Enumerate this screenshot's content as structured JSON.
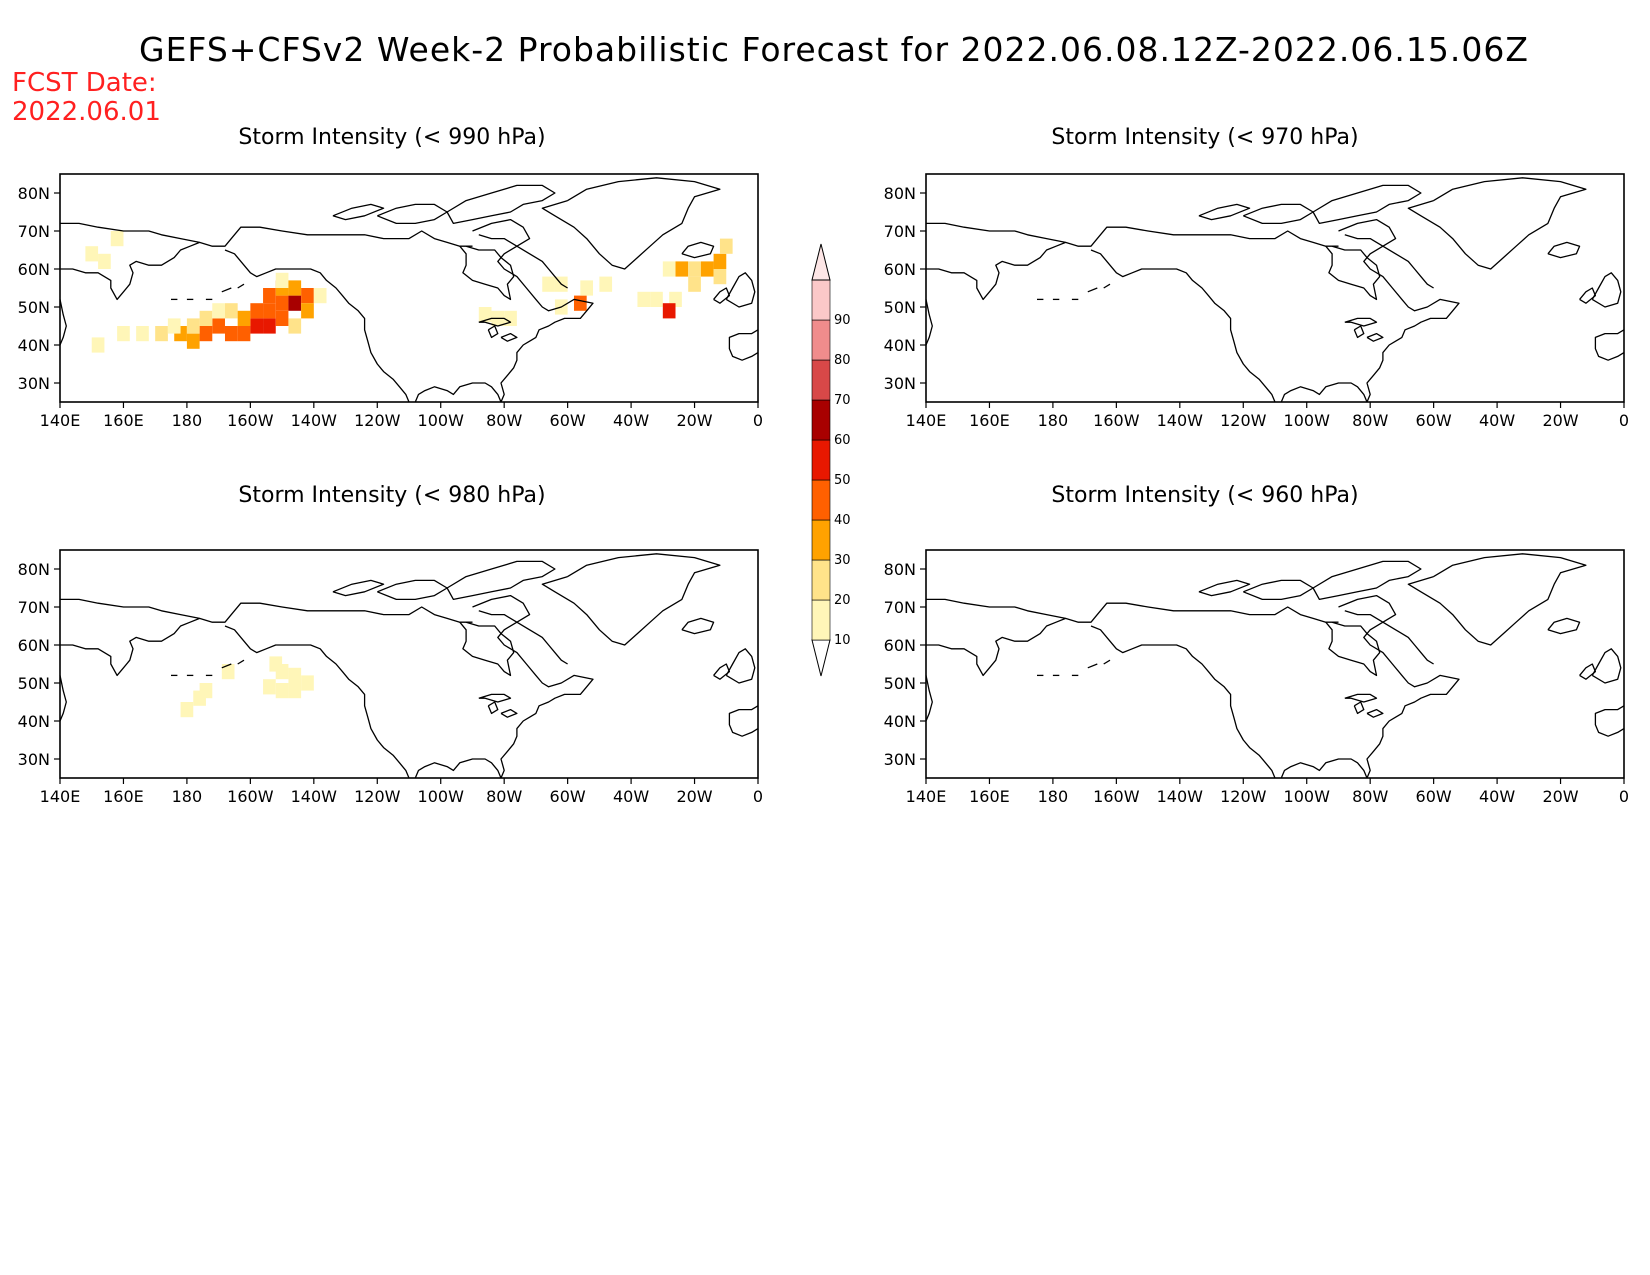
{
  "title": "GEFS+CFSv2 Week-2 Probabilistic Forecast for 2022.06.08.12Z-2022.06.15.06Z",
  "fcst_date_label": "FCST Date:",
  "fcst_date_value": "2022.06.01",
  "axes": {
    "x_ticks": [
      "140E",
      "160E",
      "180",
      "160W",
      "140W",
      "120W",
      "100W",
      "80W",
      "60W",
      "40W",
      "20W",
      "0"
    ],
    "y_ticks": [
      "80N",
      "70N",
      "60N",
      "50N",
      "40N",
      "30N"
    ],
    "lon_range": [
      140,
      360
    ],
    "lat_range": [
      25,
      85
    ]
  },
  "colorbar": {
    "levels": [
      "10",
      "20",
      "30",
      "40",
      "50",
      "60",
      "70",
      "80",
      "90"
    ],
    "colors": [
      "#fff6b8",
      "#ffe38a",
      "#ffa200",
      "#ff6000",
      "#e81800",
      "#a80000",
      "#d84848",
      "#f08c8c",
      "#fbc8c8",
      "#fde6e6"
    ]
  },
  "panels": [
    {
      "title": "Storm Intensity (< 990 hPa)",
      "cells": [
        {
          "lon": 150,
          "lat": 64,
          "p": 15
        },
        {
          "lon": 154,
          "lat": 62,
          "p": 15
        },
        {
          "lon": 158,
          "lat": 68,
          "p": 12
        },
        {
          "lon": 152,
          "lat": 40,
          "p": 12
        },
        {
          "lon": 160,
          "lat": 43,
          "p": 15
        },
        {
          "lon": 166,
          "lat": 43,
          "p": 15
        },
        {
          "lon": 172,
          "lat": 43,
          "p": 25
        },
        {
          "lon": 178,
          "lat": 43,
          "p": 35
        },
        {
          "lon": 182,
          "lat": 41,
          "p": 35
        },
        {
          "lon": 186,
          "lat": 43,
          "p": 45
        },
        {
          "lon": 190,
          "lat": 45,
          "p": 40
        },
        {
          "lon": 194,
          "lat": 43,
          "p": 45
        },
        {
          "lon": 198,
          "lat": 43,
          "p": 45
        },
        {
          "lon": 202,
          "lat": 45,
          "p": 55
        },
        {
          "lon": 206,
          "lat": 45,
          "p": 55
        },
        {
          "lon": 186,
          "lat": 47,
          "p": 25
        },
        {
          "lon": 194,
          "lat": 49,
          "p": 25
        },
        {
          "lon": 198,
          "lat": 47,
          "p": 30
        },
        {
          "lon": 202,
          "lat": 49,
          "p": 45
        },
        {
          "lon": 206,
          "lat": 49,
          "p": 45
        },
        {
          "lon": 206,
          "lat": 53,
          "p": 40
        },
        {
          "lon": 210,
          "lat": 47,
          "p": 40
        },
        {
          "lon": 210,
          "lat": 51,
          "p": 45
        },
        {
          "lon": 214,
          "lat": 51,
          "p": 60
        },
        {
          "lon": 210,
          "lat": 55,
          "p": 30
        },
        {
          "lon": 214,
          "lat": 55,
          "p": 35
        },
        {
          "lon": 218,
          "lat": 53,
          "p": 40
        },
        {
          "lon": 218,
          "lat": 49,
          "p": 30
        },
        {
          "lon": 214,
          "lat": 45,
          "p": 25
        },
        {
          "lon": 190,
          "lat": 49,
          "p": 15
        },
        {
          "lon": 182,
          "lat": 45,
          "p": 20
        },
        {
          "lon": 176,
          "lat": 45,
          "p": 15
        },
        {
          "lon": 222,
          "lat": 53,
          "p": 15
        },
        {
          "lon": 210,
          "lat": 57,
          "p": 15
        },
        {
          "lon": 294,
          "lat": 56,
          "p": 15
        },
        {
          "lon": 298,
          "lat": 56,
          "p": 15
        },
        {
          "lon": 312,
          "lat": 56,
          "p": 15
        },
        {
          "lon": 304,
          "lat": 51,
          "p": 40
        },
        {
          "lon": 298,
          "lat": 50,
          "p": 12
        },
        {
          "lon": 306,
          "lat": 55,
          "p": 12
        },
        {
          "lon": 282,
          "lat": 47,
          "p": 15
        },
        {
          "lon": 278,
          "lat": 47,
          "p": 12
        },
        {
          "lon": 274,
          "lat": 48,
          "p": 12
        },
        {
          "lon": 324,
          "lat": 52,
          "p": 15
        },
        {
          "lon": 328,
          "lat": 52,
          "p": 15
        },
        {
          "lon": 334,
          "lat": 52,
          "p": 15
        },
        {
          "lon": 336,
          "lat": 60,
          "p": 30
        },
        {
          "lon": 340,
          "lat": 60,
          "p": 25
        },
        {
          "lon": 344,
          "lat": 60,
          "p": 30
        },
        {
          "lon": 348,
          "lat": 62,
          "p": 30
        },
        {
          "lon": 348,
          "lat": 58,
          "p": 20
        },
        {
          "lon": 332,
          "lat": 60,
          "p": 15
        },
        {
          "lon": 340,
          "lat": 56,
          "p": 20
        },
        {
          "lon": 332,
          "lat": 49,
          "p": 50
        },
        {
          "lon": 350,
          "lat": 66,
          "p": 20
        }
      ]
    },
    {
      "title": "Storm Intensity (< 970 hPa)",
      "cells": []
    },
    {
      "title": "Storm Intensity (< 980 hPa)",
      "cells": [
        {
          "lon": 210,
          "lat": 53,
          "p": 15
        },
        {
          "lon": 214,
          "lat": 52,
          "p": 15
        },
        {
          "lon": 218,
          "lat": 50,
          "p": 15
        },
        {
          "lon": 206,
          "lat": 49,
          "p": 12
        },
        {
          "lon": 210,
          "lat": 48,
          "p": 15
        },
        {
          "lon": 214,
          "lat": 48,
          "p": 12
        },
        {
          "lon": 186,
          "lat": 48,
          "p": 12
        },
        {
          "lon": 193,
          "lat": 53,
          "p": 12
        },
        {
          "lon": 180,
          "lat": 43,
          "p": 12
        },
        {
          "lon": 184,
          "lat": 46,
          "p": 12
        },
        {
          "lon": 208,
          "lat": 55,
          "p": 12
        }
      ]
    },
    {
      "title": "Storm Intensity (< 960 hPa)",
      "cells": []
    }
  ]
}
